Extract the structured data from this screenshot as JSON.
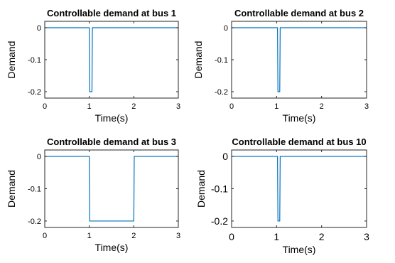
{
  "chart_data": [
    {
      "type": "line",
      "title": "Controllable demand at bus 1",
      "xlabel": "Time(s)",
      "ylabel": "Demand",
      "xlim": [
        0,
        3
      ],
      "ylim": [
        -0.22,
        0.02
      ],
      "xticks": [
        "0",
        "1",
        "2",
        "3"
      ],
      "yticks": [
        "0",
        "-0.1",
        "-0.2"
      ],
      "series": [
        {
          "x": [
            0,
            1.0,
            1.01,
            1.06,
            1.07,
            3
          ],
          "y": [
            0,
            0,
            -0.2,
            -0.2,
            0,
            0
          ]
        }
      ],
      "color": "#0072BD"
    },
    {
      "type": "line",
      "title": "Controllable demand at bus 2",
      "xlabel": "Time(s)",
      "ylabel": "Demand",
      "xlim": [
        0,
        3
      ],
      "ylim": [
        -0.22,
        0.02
      ],
      "xticks": [
        "0",
        "1",
        "2",
        "3"
      ],
      "yticks": [
        "0",
        "-0.1",
        "-0.2"
      ],
      "series": [
        {
          "x": [
            0,
            1.02,
            1.03,
            1.07,
            1.08,
            3
          ],
          "y": [
            0,
            0,
            -0.2,
            -0.2,
            0,
            0
          ]
        }
      ],
      "color": "#0072BD"
    },
    {
      "type": "line",
      "title": "Controllable demand at bus 3",
      "xlabel": "Time(s)",
      "ylabel": "Demand",
      "xlim": [
        0,
        3
      ],
      "ylim": [
        -0.22,
        0.02
      ],
      "xticks": [
        "0",
        "1",
        "2",
        "3"
      ],
      "yticks": [
        "0",
        "-0.1",
        "-0.2"
      ],
      "series": [
        {
          "x": [
            0,
            1.0,
            1.01,
            2.0,
            2.01,
            3
          ],
          "y": [
            0,
            0,
            -0.2,
            -0.2,
            0,
            0
          ]
        }
      ],
      "color": "#0072BD"
    },
    {
      "type": "line",
      "title": "Controllable demand at bus 10",
      "xlabel": "Time(s)",
      "ylabel": "Demand",
      "xlim": [
        0,
        3
      ],
      "ylim": [
        -0.22,
        0.02
      ],
      "xticks": [
        "0",
        "1",
        "2",
        "3"
      ],
      "yticks": [
        "0",
        "-0.1",
        "-0.2"
      ],
      "series": [
        {
          "x": [
            0,
            1.02,
            1.03,
            1.07,
            1.08,
            3
          ],
          "y": [
            0,
            0,
            -0.2,
            -0.2,
            0,
            0
          ]
        }
      ],
      "color": "#0072BD"
    }
  ]
}
